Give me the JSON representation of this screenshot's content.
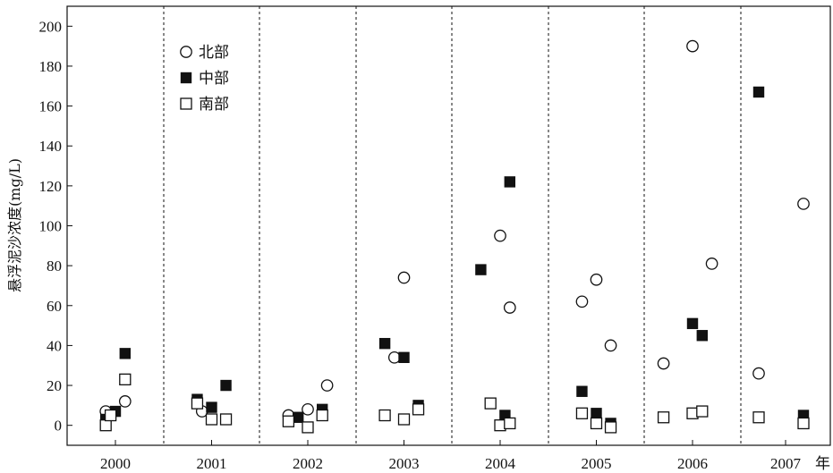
{
  "chart_data": {
    "type": "scatter",
    "title": "",
    "ylabel": "悬浮泥沙浓度(mg/L)",
    "xlabel": "",
    "ylim": [
      -10,
      210
    ],
    "yticks": [
      0,
      20,
      40,
      60,
      80,
      100,
      120,
      140,
      160,
      180,
      200
    ],
    "categories": [
      "2000",
      "2001",
      "2002",
      "2003",
      "2004",
      "2005",
      "2006",
      "2007"
    ],
    "x_unit_suffix": "年",
    "legend": {
      "placement": "top-left"
    },
    "grid": false,
    "series": [
      {
        "name": "北部",
        "marker": "open-circle",
        "points": [
          {
            "year": "2000",
            "offset": -0.1,
            "value": 7
          },
          {
            "year": "2000",
            "offset": 0.1,
            "value": 12
          },
          {
            "year": "2001",
            "offset": -0.1,
            "value": 7
          },
          {
            "year": "2002",
            "offset": -0.2,
            "value": 5
          },
          {
            "year": "2002",
            "offset": 0.0,
            "value": 8
          },
          {
            "year": "2002",
            "offset": 0.2,
            "value": 20
          },
          {
            "year": "2003",
            "offset": -0.1,
            "value": 34
          },
          {
            "year": "2003",
            "offset": 0.0,
            "value": 74
          },
          {
            "year": "2004",
            "offset": 0.0,
            "value": 95
          },
          {
            "year": "2004",
            "offset": 0.1,
            "value": 59
          },
          {
            "year": "2005",
            "offset": -0.15,
            "value": 62
          },
          {
            "year": "2005",
            "offset": 0.0,
            "value": 73
          },
          {
            "year": "2005",
            "offset": 0.15,
            "value": 40
          },
          {
            "year": "2006",
            "offset": -0.3,
            "value": 31
          },
          {
            "year": "2006",
            "offset": 0.0,
            "value": 190
          },
          {
            "year": "2006",
            "offset": 0.2,
            "value": 81
          },
          {
            "year": "2007",
            "offset": -0.3,
            "value": 26
          },
          {
            "year": "2007",
            "offset": 0.2,
            "value": 111
          }
        ]
      },
      {
        "name": "中部",
        "marker": "filled-square",
        "points": [
          {
            "year": "2000",
            "offset": -0.1,
            "value": 3
          },
          {
            "year": "2000",
            "offset": 0.0,
            "value": 7
          },
          {
            "year": "2000",
            "offset": 0.1,
            "value": 36
          },
          {
            "year": "2001",
            "offset": -0.15,
            "value": 13
          },
          {
            "year": "2001",
            "offset": 0.0,
            "value": 9
          },
          {
            "year": "2001",
            "offset": 0.15,
            "value": 20
          },
          {
            "year": "2002",
            "offset": -0.1,
            "value": 4
          },
          {
            "year": "2002",
            "offset": 0.15,
            "value": 8
          },
          {
            "year": "2003",
            "offset": -0.2,
            "value": 41
          },
          {
            "year": "2003",
            "offset": 0.0,
            "value": 34
          },
          {
            "year": "2003",
            "offset": 0.15,
            "value": 10
          },
          {
            "year": "2004",
            "offset": -0.2,
            "value": 78
          },
          {
            "year": "2004",
            "offset": 0.05,
            "value": 5
          },
          {
            "year": "2004",
            "offset": 0.1,
            "value": 122
          },
          {
            "year": "2005",
            "offset": -0.15,
            "value": 17
          },
          {
            "year": "2005",
            "offset": 0.0,
            "value": 6
          },
          {
            "year": "2005",
            "offset": 0.15,
            "value": 1
          },
          {
            "year": "2006",
            "offset": 0.0,
            "value": 51
          },
          {
            "year": "2006",
            "offset": 0.1,
            "value": 45
          },
          {
            "year": "2007",
            "offset": -0.3,
            "value": 167
          },
          {
            "year": "2007",
            "offset": 0.2,
            "value": 5
          }
        ]
      },
      {
        "name": "南部",
        "marker": "open-square",
        "points": [
          {
            "year": "2000",
            "offset": -0.1,
            "value": 0
          },
          {
            "year": "2000",
            "offset": -0.05,
            "value": 5
          },
          {
            "year": "2000",
            "offset": 0.1,
            "value": 23
          },
          {
            "year": "2001",
            "offset": -0.15,
            "value": 11
          },
          {
            "year": "2001",
            "offset": 0.0,
            "value": 3
          },
          {
            "year": "2001",
            "offset": 0.15,
            "value": 3
          },
          {
            "year": "2002",
            "offset": -0.2,
            "value": 2
          },
          {
            "year": "2002",
            "offset": 0.0,
            "value": -1
          },
          {
            "year": "2002",
            "offset": 0.15,
            "value": 5
          },
          {
            "year": "2003",
            "offset": -0.2,
            "value": 5
          },
          {
            "year": "2003",
            "offset": 0.0,
            "value": 3
          },
          {
            "year": "2003",
            "offset": 0.15,
            "value": 8
          },
          {
            "year": "2004",
            "offset": -0.1,
            "value": 11
          },
          {
            "year": "2004",
            "offset": 0.0,
            "value": 0
          },
          {
            "year": "2004",
            "offset": 0.1,
            "value": 1
          },
          {
            "year": "2005",
            "offset": -0.15,
            "value": 6
          },
          {
            "year": "2005",
            "offset": 0.0,
            "value": 1
          },
          {
            "year": "2005",
            "offset": 0.15,
            "value": -1
          },
          {
            "year": "2006",
            "offset": -0.3,
            "value": 4
          },
          {
            "year": "2006",
            "offset": 0.0,
            "value": 6
          },
          {
            "year": "2006",
            "offset": 0.1,
            "value": 7
          },
          {
            "year": "2007",
            "offset": -0.3,
            "value": 4
          },
          {
            "year": "2007",
            "offset": 0.2,
            "value": 1
          }
        ]
      }
    ]
  }
}
